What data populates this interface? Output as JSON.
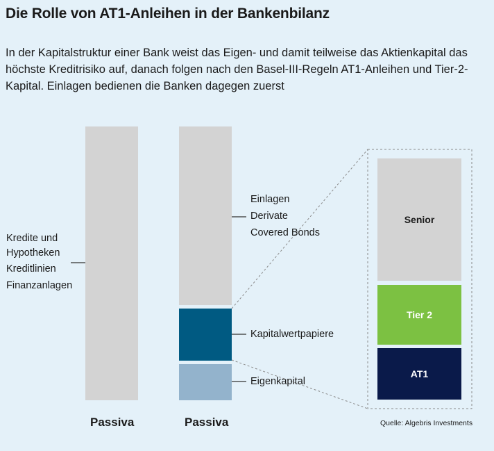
{
  "title": "Die Rolle von AT1-Anleihen in der Bankenbilanz",
  "intro": "In der Kapitalstruktur einer Bank weist das Eigen- und damit teilweise das Aktienkapital das höchste Kreditrisiko auf, danach folgen nach den Basel-III-Regeln AT1-Anleihen und Tier-2-Kapital. Einlagen bedienen die Banken dagegen zuerst",
  "left_column": {
    "label": "Passiva",
    "items": [
      "Kredite und",
      "Hypotheken",
      "Kreditlinien",
      "Finanzanlagen"
    ]
  },
  "middle_column": {
    "label": "Passiva",
    "liabilities_items": [
      "Einlagen",
      "Derivate",
      "Covered Bonds"
    ],
    "capital_securities": "Kapitalwertpapiere",
    "equity": "Eigenkapital"
  },
  "breakdown": {
    "senior": "Senior",
    "tier2": "Tier 2",
    "at1": "AT1"
  },
  "source": "Quelle: Algebris Investments",
  "colors": {
    "background": "#e4f1f9",
    "grey_bar": "#d3d3d3",
    "capital_securities": "#005a82",
    "equity": "#93b3cc",
    "tier2": "#7cc142",
    "at1": "#0a1a4a"
  }
}
